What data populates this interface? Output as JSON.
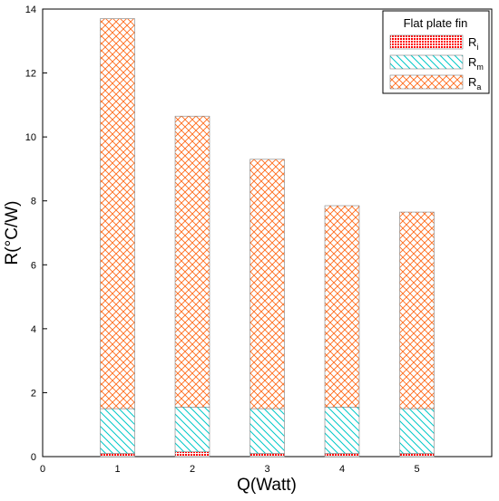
{
  "chart_data": {
    "type": "bar",
    "stacked": true,
    "categories": [
      "1",
      "2",
      "3",
      "4",
      "5"
    ],
    "xlabel": "Q(Watt)",
    "ylabel": "R(°C/W)",
    "xlim": [
      0,
      6
    ],
    "ylim": [
      0,
      14
    ],
    "x_ticks": [
      0,
      1,
      2,
      3,
      4,
      5
    ],
    "y_ticks": [
      0,
      2,
      4,
      6,
      8,
      10,
      12,
      14
    ],
    "grid": false,
    "legend": {
      "title": "Flat plate fin",
      "placement": "top-right"
    },
    "series": [
      {
        "name": "R",
        "subscript": "i",
        "values": [
          0.1,
          0.15,
          0.1,
          0.1,
          0.1
        ],
        "color": "#ff0000",
        "pattern": "dots"
      },
      {
        "name": "R",
        "subscript": "m",
        "values": [
          1.4,
          1.4,
          1.4,
          1.45,
          1.4
        ],
        "color": "#00cccc",
        "pattern": "diagonal"
      },
      {
        "name": "R",
        "subscript": "a",
        "values": [
          12.2,
          9.1,
          7.8,
          6.3,
          6.15
        ],
        "color": "#ff6600",
        "pattern": "crosshatch"
      }
    ]
  }
}
